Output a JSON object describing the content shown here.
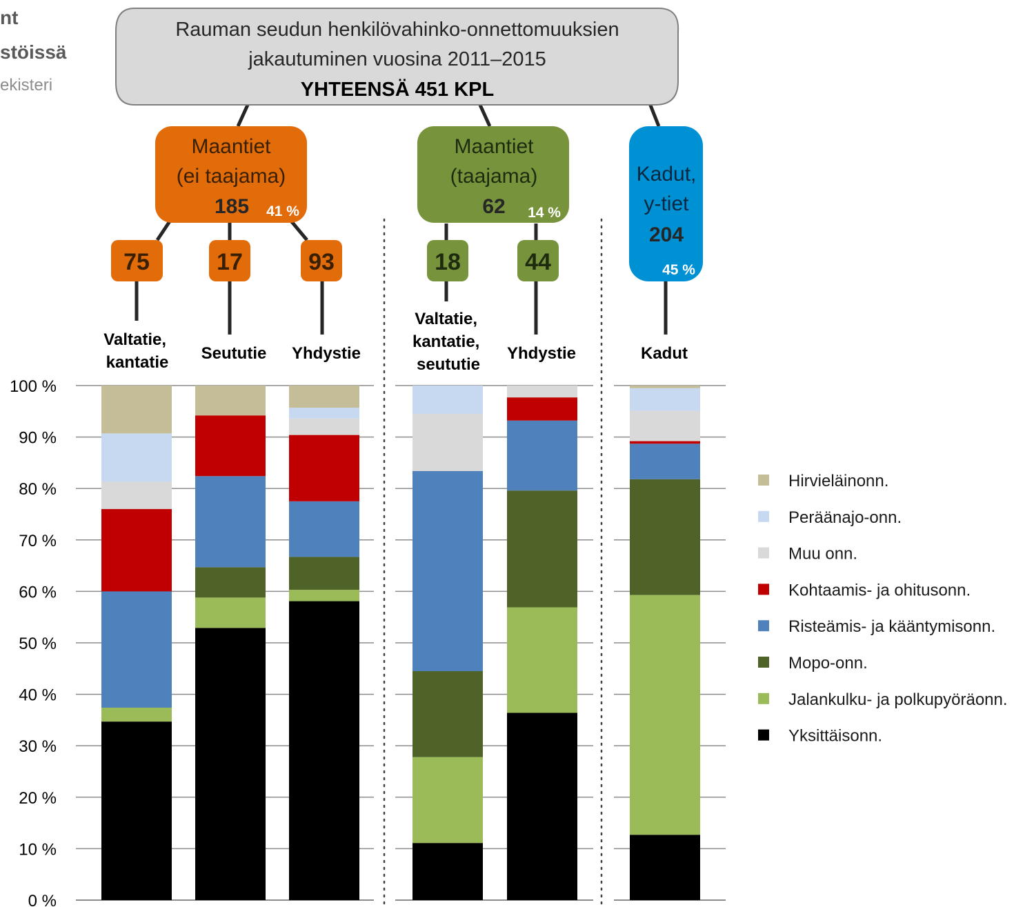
{
  "corner_text": [
    "nt",
    "stöissä",
    "ekisteri"
  ],
  "top_box": {
    "line1": "Rauman seudun henkilövahinko-onnettomuuksien",
    "line2": "jakautuminen vuosina 2011–2015",
    "line3": "YHTEENSÄ 451 KPL"
  },
  "groups": [
    {
      "lines": [
        "Maantiet",
        "(ei taajama)"
      ],
      "count": "185",
      "pct": "41 %",
      "color": "#e36c0a"
    },
    {
      "lines": [
        "Maantiet",
        "(taajama)"
      ],
      "count": "62",
      "pct": "14 %",
      "color": "#77933c"
    },
    {
      "lines": [
        "Kadut,",
        "y-tiet"
      ],
      "count": "204",
      "pct": "45 %",
      "color": "#0091d5"
    }
  ],
  "sub_counts": [
    {
      "count": "75",
      "color": "#e36c0a"
    },
    {
      "count": "17",
      "color": "#e36c0a"
    },
    {
      "count": "93",
      "color": "#e36c0a"
    },
    {
      "count": "18",
      "color": "#77933c"
    },
    {
      "count": "44",
      "color": "#77933c"
    }
  ],
  "colors": {
    "Hirvieläinonn.": "#c4bd97",
    "Peräänajo-onn.": "#c6d9f1",
    "Muu onn.": "#d9d9d9",
    "Kohtaamis- ja ohitusonn.": "#c00000",
    "Risteämis- ja kääntymisonn.": "#4f81bd",
    "Mopo-onn.": "#4f6228",
    "Jalankulku- ja polkupyöräonn.": "#9bbb59",
    "Yksittäisonn.": "#000000"
  },
  "chart_data": {
    "type": "bar",
    "stacked": true,
    "categories": [
      "Valtatie, kantatie",
      "Seututie",
      "Yhdystie",
      "Valtatie, kantatie, seututie",
      "Yhdystie",
      "Kadut"
    ],
    "y_ticks": [
      "0 %",
      "10 %",
      "20 %",
      "30 %",
      "40 %",
      "50 %",
      "60 %",
      "70 %",
      "80 %",
      "90 %",
      "100 %"
    ],
    "ylim": [
      0,
      100
    ],
    "grid": true,
    "legend_position": "right",
    "series": [
      {
        "name": "Yksittäisonn.",
        "values": [
          34.7,
          52.9,
          58.1,
          11.1,
          36.4,
          12.7
        ]
      },
      {
        "name": "Jalankulku- ja polkupyöräonn.",
        "values": [
          2.7,
          5.9,
          2.2,
          16.7,
          20.5,
          46.6
        ]
      },
      {
        "name": "Mopo-onn.",
        "values": [
          0,
          5.9,
          6.4,
          16.7,
          22.7,
          22.5
        ]
      },
      {
        "name": "Risteämis- ja kääntymisonn.",
        "values": [
          22.6,
          17.7,
          10.8,
          38.9,
          13.6,
          6.9
        ]
      },
      {
        "name": "Kohtaamis- ja ohitusonn.",
        "values": [
          16.0,
          11.8,
          12.9,
          0,
          4.5,
          0.5
        ]
      },
      {
        "name": "Muu onn.",
        "values": [
          5.3,
          0,
          3.2,
          11.1,
          2.3,
          5.9
        ]
      },
      {
        "name": "Peräänajo-onn.",
        "values": [
          9.4,
          0,
          2.1,
          5.5,
          0,
          4.4
        ]
      },
      {
        "name": "Hirvieläinonn.",
        "values": [
          9.3,
          5.8,
          4.3,
          0,
          0,
          0.5
        ]
      }
    ]
  }
}
